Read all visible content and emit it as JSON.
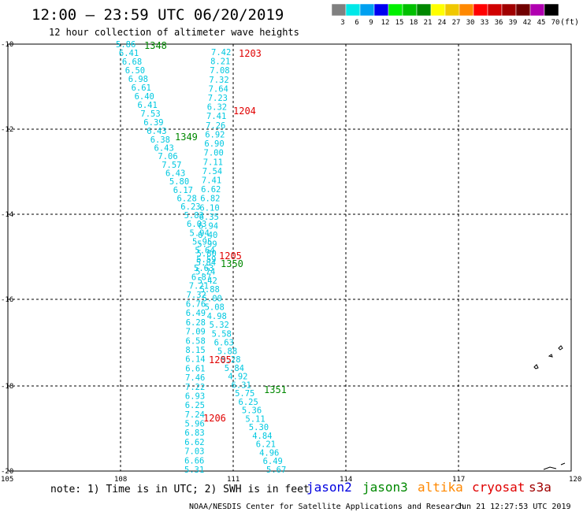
{
  "header": {
    "title": "12:00 – 23:59 UTC 06/20/2019",
    "subtitle": "12 hour collection of altimeter wave heights"
  },
  "legend": {
    "unit": "(ft)",
    "bins": [
      {
        "label": "3",
        "color": "#808080"
      },
      {
        "label": "6",
        "color": "#00e8e8"
      },
      {
        "label": "9",
        "color": "#00a0f0"
      },
      {
        "label": "12",
        "color": "#0000f0"
      },
      {
        "label": "15",
        "color": "#00f000"
      },
      {
        "label": "18",
        "color": "#00c000"
      },
      {
        "label": "21",
        "color": "#008800"
      },
      {
        "label": "24",
        "color": "#ffff00"
      },
      {
        "label": "27",
        "color": "#f0c800"
      },
      {
        "label": "30",
        "color": "#ff8800"
      },
      {
        "label": "33",
        "color": "#ff0000"
      },
      {
        "label": "36",
        "color": "#d00000"
      },
      {
        "label": "39",
        "color": "#a00000"
      },
      {
        "label": "42",
        "color": "#700000"
      },
      {
        "label": "45",
        "color": "#b000b0"
      },
      {
        "label": "70",
        "color": "#000000"
      }
    ]
  },
  "axes": {
    "lat_labels": [
      "-10",
      "-12",
      "-14",
      "-16",
      "-18",
      "-20"
    ],
    "lon_labels": [
      "105",
      "108",
      "111",
      "114",
      "117",
      "120"
    ]
  },
  "tracks": [
    {
      "color": "#00c8e0",
      "values": [
        "5.86",
        "6.41",
        "6.68",
        "6.50",
        "6.98",
        "6.61",
        "6.40",
        "6.41",
        "7.53",
        "6.39",
        "6.43",
        "6.38",
        "6.43",
        "7.06",
        "7.57",
        "6.43",
        "5.80",
        "6.17",
        "6.28",
        "6.23",
        "5.83",
        "6.03",
        "5.94",
        "5.95",
        "5.64",
        "5.59",
        "5.63",
        "6.87",
        "7.21",
        "7.32",
        "6.76",
        "6.49",
        "6.28",
        "7.09",
        "6.58",
        "8.15",
        "6.14",
        "6.61",
        "7.46",
        "7.22",
        "6.93",
        "6.25",
        "7.24",
        "5.96",
        "6.83",
        "6.62",
        "7.03",
        "6.66",
        "5.31"
      ]
    },
    {
      "color": "#00c8e0",
      "values": [
        "7.42",
        "8.21",
        "7.08",
        "7.32",
        "7.64",
        "7.23",
        "6.32",
        "7.41",
        "7.26",
        "6.92",
        "6.90",
        "7.00",
        "7.11",
        "7.54",
        "7.41",
        "6.62",
        "6.82",
        "6.10",
        "6.35",
        "6.94",
        "6.40",
        "5.99",
        "5.80",
        "5.84",
        "5.74",
        "5.42",
        "5.88",
        "5.00",
        "5.08",
        "4.98",
        "5.32",
        "5.58",
        "6.63",
        "5.88",
        "5.28",
        "5.84",
        "4.92",
        "6.31",
        "5.75",
        "6.25",
        "5.36",
        "5.11",
        "5.30",
        "4.84",
        "6.21",
        "4.96",
        "6.49",
        "5.67"
      ]
    }
  ],
  "pass_labels": [
    {
      "text": "1348",
      "color": "#008800"
    },
    {
      "text": "1203",
      "color": "#e00000"
    },
    {
      "text": "1204",
      "color": "#e00000"
    },
    {
      "text": "1349",
      "color": "#008800"
    },
    {
      "text": "1205",
      "color": "#e00000"
    },
    {
      "text": "1350",
      "color": "#008800"
    },
    {
      "text": "1205",
      "color": "#e00000"
    },
    {
      "text": "1351",
      "color": "#008800"
    },
    {
      "text": "1206",
      "color": "#e00000"
    }
  ],
  "satellites": [
    {
      "name": "jason2",
      "color": "#0000e0"
    },
    {
      "name": "jason3",
      "color": "#008800"
    },
    {
      "name": "altika",
      "color": "#ff8800"
    },
    {
      "name": "cryosat",
      "color": "#e00000"
    },
    {
      "name": "s3a",
      "color": "#a00000"
    }
  ],
  "footer": {
    "note": "note: 1) Time is in UTC; 2) SWH is in feet",
    "credit": "NOAA/NESDIS Center for Satellite Applications and Research",
    "timestamp": "Jun 21 12:27:53 UTC 2019"
  }
}
